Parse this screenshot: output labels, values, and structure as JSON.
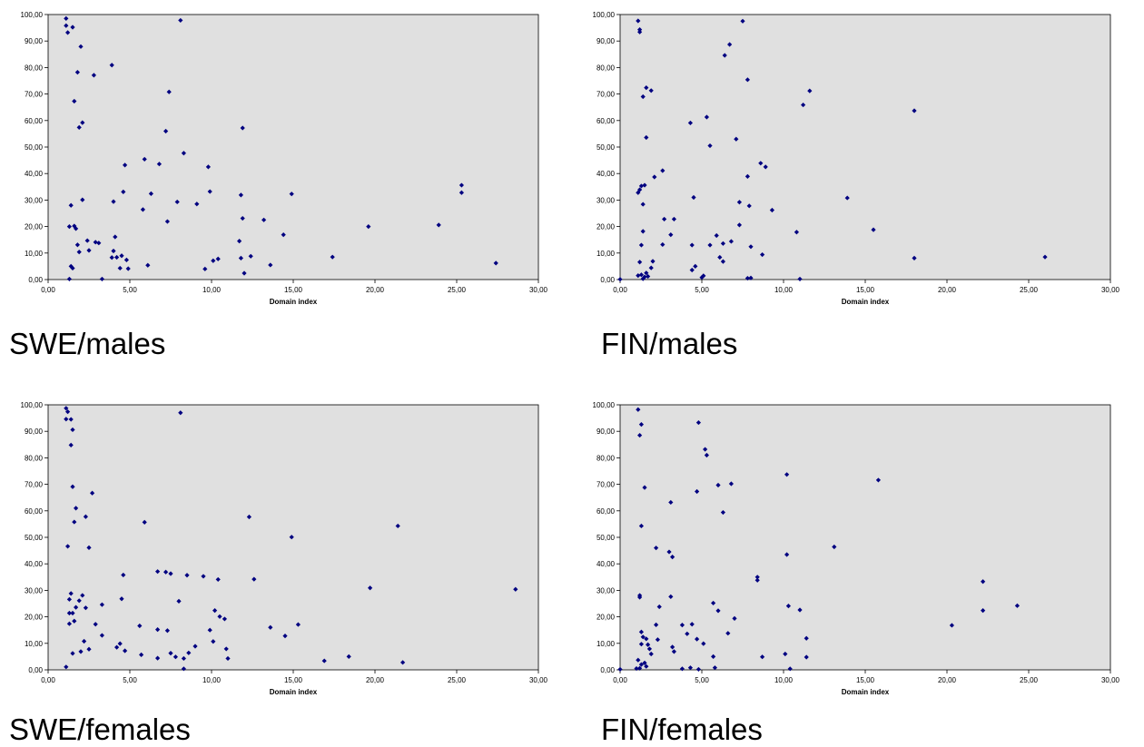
{
  "colors": {
    "plot_bg": "#e0e0e0",
    "marker": "#000080",
    "axis": "#000000"
  },
  "chart_data": [
    {
      "type": "scatter",
      "caption": "SWE/males",
      "xlabel": "Domain index",
      "ylabel": "",
      "xlim": [
        0,
        30
      ],
      "ylim": [
        0,
        100
      ],
      "xticks": [
        "0,00",
        "5,00",
        "10,00",
        "15,00",
        "20,00",
        "25,00",
        "30,00"
      ],
      "yticks": [
        "0,00",
        "10,00",
        "20,00",
        "30,00",
        "40,00",
        "50,00",
        "60,00",
        "70,00",
        "80,00",
        "90,00",
        "100,00"
      ],
      "grid": false,
      "points": [
        [
          1.1,
          98.5
        ],
        [
          1.1,
          95.8
        ],
        [
          1.2,
          93.2
        ],
        [
          1.5,
          95.2
        ],
        [
          2.0,
          87.9
        ],
        [
          3.9,
          80.9
        ],
        [
          1.8,
          78.2
        ],
        [
          2.8,
          77.1
        ],
        [
          1.6,
          67.3
        ],
        [
          2.1,
          59.2
        ],
        [
          1.9,
          57.4
        ],
        [
          8.1,
          97.8
        ],
        [
          7.4,
          70.8
        ],
        [
          7.2,
          56.0
        ],
        [
          11.9,
          57.2
        ],
        [
          8.3,
          47.7
        ],
        [
          5.9,
          45.4
        ],
        [
          6.8,
          43.6
        ],
        [
          4.7,
          43.2
        ],
        [
          9.8,
          42.5
        ],
        [
          1.4,
          28.0
        ],
        [
          2.1,
          30.1
        ],
        [
          4.0,
          29.4
        ],
        [
          4.6,
          33.1
        ],
        [
          6.3,
          32.4
        ],
        [
          7.9,
          29.3
        ],
        [
          9.1,
          28.5
        ],
        [
          9.9,
          33.2
        ],
        [
          11.8,
          31.9
        ],
        [
          14.9,
          32.3
        ],
        [
          25.3,
          35.6
        ],
        [
          25.3,
          32.8
        ],
        [
          5.8,
          26.4
        ],
        [
          7.3,
          21.9
        ],
        [
          1.3,
          20.0
        ],
        [
          1.6,
          20.2
        ],
        [
          1.7,
          19.2
        ],
        [
          1.8,
          13.1
        ],
        [
          1.9,
          10.4
        ],
        [
          2.4,
          14.7
        ],
        [
          2.5,
          11.0
        ],
        [
          2.9,
          14.1
        ],
        [
          3.1,
          13.8
        ],
        [
          3.9,
          8.3
        ],
        [
          4.0,
          10.8
        ],
        [
          4.2,
          8.4
        ],
        [
          4.1,
          16.1
        ],
        [
          4.4,
          4.3
        ],
        [
          4.5,
          9.0
        ],
        [
          4.8,
          7.4
        ],
        [
          4.9,
          4.1
        ],
        [
          1.4,
          5.0
        ],
        [
          1.5,
          4.3
        ],
        [
          1.3,
          0.2
        ],
        [
          3.3,
          0.2
        ],
        [
          6.1,
          5.4
        ],
        [
          9.6,
          4.0
        ],
        [
          10.1,
          7.1
        ],
        [
          10.4,
          7.8
        ],
        [
          11.7,
          14.5
        ],
        [
          11.9,
          23.1
        ],
        [
          11.8,
          8.1
        ],
        [
          12.0,
          2.4
        ],
        [
          12.4,
          8.8
        ],
        [
          13.2,
          22.5
        ],
        [
          13.6,
          5.5
        ],
        [
          14.4,
          16.9
        ],
        [
          17.4,
          8.5
        ],
        [
          19.6,
          20.0
        ],
        [
          23.9,
          20.6
        ],
        [
          27.4,
          6.2
        ]
      ]
    },
    {
      "type": "scatter",
      "caption": "FIN/males",
      "xlabel": "Domain index",
      "ylabel": "",
      "xlim": [
        0,
        30
      ],
      "ylim": [
        0,
        100
      ],
      "xticks": [
        "0,00",
        "5,00",
        "10,00",
        "15,00",
        "20,00",
        "25,00",
        "30,00"
      ],
      "yticks": [
        "0,00",
        "10,00",
        "20,00",
        "30,00",
        "40,00",
        "50,00",
        "60,00",
        "70,00",
        "80,00",
        "90,00",
        "100,00"
      ],
      "grid": false,
      "points": [
        [
          1.1,
          97.6
        ],
        [
          1.2,
          94.3
        ],
        [
          1.2,
          93.4
        ],
        [
          1.4,
          69.0
        ],
        [
          1.6,
          72.4
        ],
        [
          1.9,
          71.3
        ],
        [
          1.6,
          53.6
        ],
        [
          7.5,
          97.5
        ],
        [
          6.7,
          88.7
        ],
        [
          6.4,
          84.6
        ],
        [
          7.8,
          75.4
        ],
        [
          11.6,
          71.2
        ],
        [
          11.2,
          65.9
        ],
        [
          18.0,
          63.7
        ],
        [
          4.3,
          59.1
        ],
        [
          5.3,
          61.3
        ],
        [
          5.5,
          50.5
        ],
        [
          7.1,
          53.0
        ],
        [
          8.6,
          43.9
        ],
        [
          8.9,
          42.5
        ],
        [
          7.8,
          38.9
        ],
        [
          2.1,
          38.7
        ],
        [
          2.6,
          41.1
        ],
        [
          1.1,
          32.8
        ],
        [
          1.2,
          33.9
        ],
        [
          1.3,
          35.3
        ],
        [
          1.5,
          35.6
        ],
        [
          1.4,
          28.4
        ],
        [
          4.5,
          31.0
        ],
        [
          7.3,
          29.2
        ],
        [
          7.9,
          27.8
        ],
        [
          9.3,
          26.2
        ],
        [
          13.9,
          30.8
        ],
        [
          2.7,
          22.8
        ],
        [
          3.3,
          22.8
        ],
        [
          7.3,
          20.6
        ],
        [
          1.4,
          18.2
        ],
        [
          3.1,
          16.9
        ],
        [
          5.9,
          16.6
        ],
        [
          10.8,
          17.9
        ],
        [
          15.5,
          18.8
        ],
        [
          1.3,
          13.0
        ],
        [
          2.6,
          13.2
        ],
        [
          4.4,
          13.0
        ],
        [
          5.5,
          13.0
        ],
        [
          6.3,
          13.6
        ],
        [
          6.8,
          14.4
        ],
        [
          8.0,
          12.4
        ],
        [
          8.7,
          9.4
        ],
        [
          6.1,
          8.4
        ],
        [
          6.3,
          6.8
        ],
        [
          2.0,
          6.9
        ],
        [
          1.9,
          4.4
        ],
        [
          1.2,
          6.6
        ],
        [
          4.4,
          3.6
        ],
        [
          4.6,
          5.0
        ],
        [
          5.1,
          1.4
        ],
        [
          5.0,
          0.8
        ],
        [
          1.1,
          1.5
        ],
        [
          1.3,
          1.8
        ],
        [
          1.5,
          1.0
        ],
        [
          1.4,
          0.3
        ],
        [
          1.6,
          2.5
        ],
        [
          1.7,
          1.2
        ],
        [
          0.0,
          0.1
        ],
        [
          7.8,
          0.5
        ],
        [
          8.0,
          0.6
        ],
        [
          11.0,
          0.2
        ],
        [
          18.0,
          8.1
        ],
        [
          26.0,
          8.5
        ]
      ]
    },
    {
      "type": "scatter",
      "caption": "SWE/females",
      "xlabel": "Domain index",
      "ylabel": "",
      "xlim": [
        0,
        30
      ],
      "ylim": [
        0,
        100
      ],
      "xticks": [
        "0,00",
        "5,00",
        "10,00",
        "15,00",
        "20,00",
        "25,00",
        "30,00"
      ],
      "yticks": [
        "0,00",
        "10,00",
        "20,00",
        "30,00",
        "40,00",
        "50,00",
        "60,00",
        "70,00",
        "80,00",
        "90,00",
        "100,00"
      ],
      "grid": false,
      "points": [
        [
          1.1,
          98.7
        ],
        [
          1.2,
          97.4
        ],
        [
          1.1,
          94.6
        ],
        [
          1.4,
          94.5
        ],
        [
          1.5,
          90.6
        ],
        [
          1.4,
          84.8
        ],
        [
          1.5,
          69.1
        ],
        [
          2.7,
          66.7
        ],
        [
          1.7,
          61.0
        ],
        [
          2.3,
          57.8
        ],
        [
          1.6,
          55.8
        ],
        [
          8.1,
          97.0
        ],
        [
          5.9,
          55.7
        ],
        [
          12.3,
          57.7
        ],
        [
          21.4,
          54.3
        ],
        [
          14.9,
          50.1
        ],
        [
          1.2,
          46.6
        ],
        [
          2.5,
          46.1
        ],
        [
          4.6,
          35.8
        ],
        [
          6.7,
          37.1
        ],
        [
          7.2,
          36.9
        ],
        [
          7.5,
          36.3
        ],
        [
          8.5,
          35.7
        ],
        [
          9.5,
          35.3
        ],
        [
          10.4,
          34.1
        ],
        [
          12.6,
          34.2
        ],
        [
          19.7,
          30.9
        ],
        [
          28.6,
          30.4
        ],
        [
          1.3,
          26.6
        ],
        [
          1.4,
          28.8
        ],
        [
          1.9,
          26.1
        ],
        [
          2.1,
          28.1
        ],
        [
          3.3,
          24.6
        ],
        [
          2.9,
          17.2
        ],
        [
          3.3,
          13.0
        ],
        [
          1.3,
          21.4
        ],
        [
          1.5,
          21.4
        ],
        [
          1.7,
          23.6
        ],
        [
          2.3,
          23.4
        ],
        [
          4.5,
          26.8
        ],
        [
          8.0,
          25.9
        ],
        [
          10.2,
          22.4
        ],
        [
          10.5,
          20.1
        ],
        [
          10.8,
          19.2
        ],
        [
          1.3,
          17.4
        ],
        [
          1.6,
          18.4
        ],
        [
          5.6,
          16.6
        ],
        [
          6.7,
          15.2
        ],
        [
          7.3,
          14.8
        ],
        [
          9.9,
          15.0
        ],
        [
          13.6,
          16.0
        ],
        [
          15.3,
          17.1
        ],
        [
          14.5,
          12.8
        ],
        [
          2.0,
          6.9
        ],
        [
          2.2,
          10.8
        ],
        [
          2.5,
          7.8
        ],
        [
          1.5,
          6.2
        ],
        [
          4.2,
          8.5
        ],
        [
          4.4,
          9.9
        ],
        [
          4.7,
          7.2
        ],
        [
          5.7,
          5.7
        ],
        [
          6.7,
          4.4
        ],
        [
          7.5,
          6.3
        ],
        [
          7.8,
          4.9
        ],
        [
          8.3,
          4.3
        ],
        [
          8.6,
          6.4
        ],
        [
          9.0,
          8.9
        ],
        [
          10.1,
          10.7
        ],
        [
          10.9,
          7.9
        ],
        [
          11.0,
          4.3
        ],
        [
          8.3,
          0.4
        ],
        [
          1.1,
          1.1
        ],
        [
          16.9,
          3.4
        ],
        [
          18.4,
          5.0
        ],
        [
          21.7,
          2.8
        ]
      ]
    },
    {
      "type": "scatter",
      "caption": "FIN/females",
      "xlabel": "Domain index",
      "ylabel": "",
      "xlim": [
        0,
        30
      ],
      "ylim": [
        0,
        100
      ],
      "xticks": [
        "0,00",
        "5,00",
        "10,00",
        "15,00",
        "20,00",
        "25,00",
        "30,00"
      ],
      "yticks": [
        "0,00",
        "10,00",
        "20,00",
        "30,00",
        "40,00",
        "50,00",
        "60,00",
        "70,00",
        "80,00",
        "90,00",
        "100,00"
      ],
      "grid": false,
      "points": [
        [
          1.1,
          98.2
        ],
        [
          1.3,
          92.6
        ],
        [
          1.2,
          88.5
        ],
        [
          1.5,
          68.8
        ],
        [
          1.3,
          54.3
        ],
        [
          4.8,
          93.3
        ],
        [
          5.2,
          83.2
        ],
        [
          5.3,
          81.0
        ],
        [
          4.7,
          67.3
        ],
        [
          6.0,
          69.7
        ],
        [
          6.8,
          70.2
        ],
        [
          6.3,
          59.4
        ],
        [
          3.1,
          63.2
        ],
        [
          10.2,
          73.7
        ],
        [
          15.8,
          71.6
        ],
        [
          13.1,
          46.4
        ],
        [
          10.2,
          43.5
        ],
        [
          2.2,
          46.0
        ],
        [
          3.0,
          44.5
        ],
        [
          3.2,
          42.6
        ],
        [
          8.4,
          33.8
        ],
        [
          8.4,
          35.0
        ],
        [
          22.2,
          33.3
        ],
        [
          22.2,
          22.4
        ],
        [
          24.3,
          24.2
        ],
        [
          20.3,
          16.8
        ],
        [
          1.2,
          28.1
        ],
        [
          1.2,
          27.4
        ],
        [
          3.1,
          27.6
        ],
        [
          2.4,
          23.8
        ],
        [
          5.7,
          25.2
        ],
        [
          6.0,
          22.3
        ],
        [
          10.3,
          24.1
        ],
        [
          11.0,
          22.6
        ],
        [
          2.2,
          17.0
        ],
        [
          2.3,
          11.4
        ],
        [
          3.8,
          16.9
        ],
        [
          4.1,
          13.6
        ],
        [
          4.4,
          17.2
        ],
        [
          4.7,
          11.6
        ],
        [
          5.1,
          9.9
        ],
        [
          6.6,
          13.8
        ],
        [
          7.0,
          19.4
        ],
        [
          11.4,
          11.9
        ],
        [
          1.3,
          14.3
        ],
        [
          1.4,
          12.4
        ],
        [
          1.6,
          11.7
        ],
        [
          1.7,
          9.5
        ],
        [
          1.9,
          6.0
        ],
        [
          1.8,
          7.9
        ],
        [
          3.2,
          8.6
        ],
        [
          3.3,
          6.9
        ],
        [
          1.3,
          9.7
        ],
        [
          1.1,
          3.7
        ],
        [
          1.3,
          2.0
        ],
        [
          1.6,
          1.3
        ],
        [
          1.0,
          0.5
        ],
        [
          0.0,
          0.2
        ],
        [
          3.8,
          0.4
        ],
        [
          4.3,
          0.8
        ],
        [
          4.8,
          0.2
        ],
        [
          5.7,
          5.0
        ],
        [
          5.8,
          0.8
        ],
        [
          8.7,
          4.9
        ],
        [
          10.1,
          6.0
        ],
        [
          11.4,
          4.8
        ],
        [
          10.4,
          0.4
        ],
        [
          1.2,
          0.6
        ],
        [
          1.5,
          2.6
        ]
      ]
    }
  ]
}
